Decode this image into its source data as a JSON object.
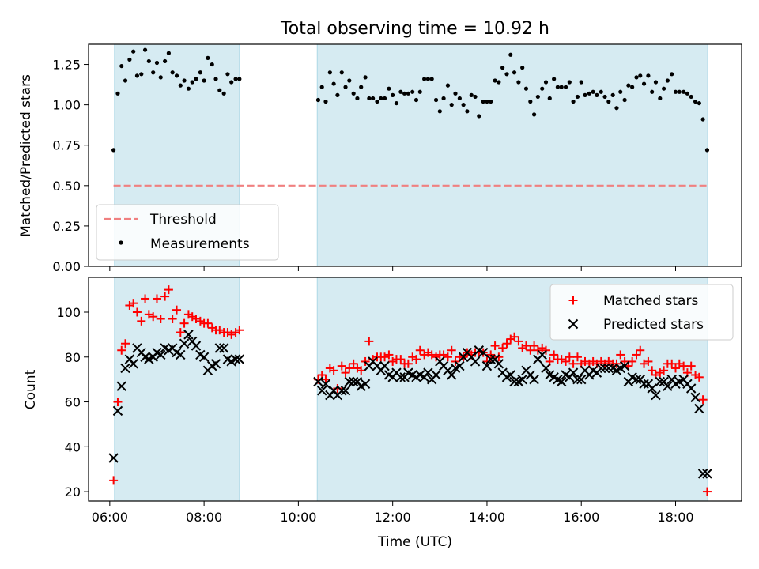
{
  "title": "Total observing time = 10.92 h",
  "chart_data": [
    {
      "type": "scatter",
      "panel": "top",
      "title": "Total observing time = 10.92 h",
      "ylabel": "Matched/Predicted stars",
      "xlabel": "",
      "xlim_hours": [
        5.55,
        19.4
      ],
      "ylim": [
        0.0,
        1.375
      ],
      "yticks": [
        "0.00",
        "0.25",
        "0.50",
        "0.75",
        "1.00",
        "1.25"
      ],
      "xticks_hours": [
        6,
        8,
        10,
        12,
        14,
        16,
        18
      ],
      "shaded_time_ranges": [
        [
          6.1,
          8.75
        ],
        [
          10.4,
          18.68
        ]
      ],
      "threshold": 0.5,
      "legend_position": "lower-left",
      "legend": [
        {
          "label": "Threshold",
          "kind": "dashed-line",
          "color": "#f08080"
        },
        {
          "label": "Measurements",
          "kind": "dot",
          "color": "#000000"
        }
      ],
      "series": [
        {
          "name": "Measurements",
          "x": [
            6.08,
            6.17,
            6.25,
            6.33,
            6.42,
            6.5,
            6.58,
            6.67,
            6.75,
            6.83,
            6.92,
            7.0,
            7.08,
            7.17,
            7.25,
            7.33,
            7.42,
            7.5,
            7.58,
            7.67,
            7.75,
            7.83,
            7.92,
            8.0,
            8.08,
            8.17,
            8.25,
            8.33,
            8.42,
            8.5,
            8.58,
            8.67,
            8.75,
            10.42,
            10.5,
            10.58,
            10.67,
            10.75,
            10.83,
            10.92,
            11.0,
            11.08,
            11.17,
            11.25,
            11.33,
            11.42,
            11.5,
            11.58,
            11.67,
            11.75,
            11.83,
            11.92,
            12.0,
            12.08,
            12.17,
            12.25,
            12.33,
            12.42,
            12.5,
            12.58,
            12.67,
            12.75,
            12.83,
            12.92,
            13.0,
            13.08,
            13.17,
            13.25,
            13.33,
            13.42,
            13.5,
            13.58,
            13.67,
            13.75,
            13.83,
            13.92,
            14.0,
            14.08,
            14.17,
            14.25,
            14.33,
            14.42,
            14.5,
            14.58,
            14.67,
            14.75,
            14.83,
            14.92,
            15.0,
            15.08,
            15.17,
            15.25,
            15.33,
            15.42,
            15.5,
            15.58,
            15.67,
            15.75,
            15.83,
            15.92,
            16.0,
            16.08,
            16.17,
            16.25,
            16.33,
            16.42,
            16.5,
            16.58,
            16.67,
            16.75,
            16.83,
            16.92,
            17.0,
            17.08,
            17.17,
            17.25,
            17.33,
            17.42,
            17.5,
            17.58,
            17.67,
            17.75,
            17.83,
            17.92,
            18.0,
            18.08,
            18.17,
            18.25,
            18.33,
            18.42,
            18.5,
            18.58,
            18.67
          ],
          "values": [
            0.72,
            1.07,
            1.24,
            1.15,
            1.28,
            1.33,
            1.18,
            1.19,
            1.34,
            1.27,
            1.2,
            1.26,
            1.17,
            1.27,
            1.32,
            1.2,
            1.18,
            1.12,
            1.15,
            1.1,
            1.14,
            1.16,
            1.2,
            1.15,
            1.29,
            1.25,
            1.16,
            1.09,
            1.07,
            1.19,
            1.14,
            1.16,
            1.16,
            1.03,
            1.11,
            1.02,
            1.2,
            1.13,
            1.06,
            1.2,
            1.11,
            1.15,
            1.07,
            1.04,
            1.11,
            1.17,
            1.04,
            1.04,
            1.02,
            1.04,
            1.04,
            1.1,
            1.06,
            1.01,
            1.08,
            1.07,
            1.07,
            1.08,
            1.03,
            1.08,
            1.16,
            1.16,
            1.16,
            1.03,
            0.96,
            1.04,
            1.12,
            1.0,
            1.07,
            1.04,
            1.0,
            0.96,
            1.06,
            1.05,
            0.93,
            1.02,
            1.02,
            1.02,
            1.15,
            1.14,
            1.23,
            1.19,
            1.31,
            1.2,
            1.14,
            1.23,
            1.1,
            1.02,
            0.94,
            1.05,
            1.1,
            1.14,
            1.04,
            1.16,
            1.11,
            1.11,
            1.11,
            1.14,
            1.02,
            1.05,
            1.14,
            1.06,
            1.07,
            1.08,
            1.06,
            1.08,
            1.05,
            1.02,
            1.06,
            0.98,
            1.08,
            1.03,
            1.12,
            1.11,
            1.17,
            1.18,
            1.13,
            1.18,
            1.08,
            1.14,
            1.04,
            1.1,
            1.15,
            1.19,
            1.08,
            1.08,
            1.08,
            1.07,
            1.05,
            1.02,
            1.01,
            0.91,
            0.72
          ]
        }
      ]
    },
    {
      "type": "scatter",
      "panel": "bottom",
      "ylabel": "Count",
      "xlabel": "Time (UTC)",
      "xlim_hours": [
        5.55,
        19.4
      ],
      "ylim": [
        15.8,
        115.5
      ],
      "yticks": [
        "20",
        "40",
        "60",
        "80",
        "100"
      ],
      "xticks_hours": [
        6,
        8,
        10,
        12,
        14,
        16,
        18
      ],
      "xtick_labels": [
        "06:00",
        "08:00",
        "10:00",
        "12:00",
        "14:00",
        "16:00",
        "18:00"
      ],
      "shaded_time_ranges": [
        [
          6.1,
          8.75
        ],
        [
          10.4,
          18.68
        ]
      ],
      "legend_position": "upper-right",
      "legend": [
        {
          "label": "Matched stars",
          "kind": "plus",
          "color": "#ff0000"
        },
        {
          "label": "Predicted stars",
          "kind": "cross",
          "color": "#000000"
        }
      ],
      "series": [
        {
          "name": "Matched stars",
          "x": [
            6.08,
            6.17,
            6.25,
            6.33,
            6.42,
            6.5,
            6.58,
            6.67,
            6.75,
            6.83,
            6.92,
            7.0,
            7.08,
            7.17,
            7.25,
            7.33,
            7.42,
            7.5,
            7.58,
            7.67,
            7.75,
            7.83,
            7.92,
            8.0,
            8.08,
            8.17,
            8.25,
            8.33,
            8.42,
            8.5,
            8.58,
            8.67,
            8.75,
            10.42,
            10.5,
            10.58,
            10.67,
            10.75,
            10.83,
            10.92,
            11.0,
            11.08,
            11.17,
            11.25,
            11.33,
            11.42,
            11.5,
            11.58,
            11.67,
            11.75,
            11.83,
            11.92,
            12.0,
            12.08,
            12.17,
            12.25,
            12.33,
            12.42,
            12.5,
            12.58,
            12.67,
            12.75,
            12.83,
            12.92,
            13.0,
            13.08,
            13.17,
            13.25,
            13.33,
            13.42,
            13.5,
            13.58,
            13.67,
            13.75,
            13.83,
            13.92,
            14.0,
            14.08,
            14.17,
            14.25,
            14.33,
            14.42,
            14.5,
            14.58,
            14.67,
            14.75,
            14.83,
            14.92,
            15.0,
            15.08,
            15.17,
            15.25,
            15.33,
            15.42,
            15.5,
            15.58,
            15.67,
            15.75,
            15.83,
            15.92,
            16.0,
            16.08,
            16.17,
            16.25,
            16.33,
            16.42,
            16.5,
            16.58,
            16.67,
            16.75,
            16.83,
            16.92,
            17.0,
            17.08,
            17.17,
            17.25,
            17.33,
            17.42,
            17.5,
            17.58,
            17.67,
            17.75,
            17.83,
            17.92,
            18.0,
            18.08,
            18.17,
            18.25,
            18.33,
            18.42,
            18.5,
            18.58,
            18.67
          ],
          "values": [
            25,
            60,
            83,
            86,
            103,
            104,
            100,
            96,
            106,
            99,
            98,
            106,
            97,
            107,
            110,
            97,
            101,
            91,
            95,
            99,
            98,
            97,
            96,
            95,
            95,
            93,
            92,
            92,
            91,
            91,
            90,
            91,
            92,
            70,
            72,
            70,
            75,
            74,
            66,
            76,
            73,
            75,
            77,
            75,
            74,
            78,
            87,
            79,
            80,
            80,
            80,
            81,
            78,
            79,
            79,
            77,
            77,
            80,
            79,
            83,
            81,
            82,
            81,
            80,
            81,
            81,
            80,
            83,
            78,
            80,
            80,
            82,
            81,
            82,
            82,
            82,
            78,
            81,
            85,
            80,
            84,
            86,
            88,
            89,
            87,
            84,
            85,
            83,
            85,
            83,
            84,
            83,
            78,
            81,
            79,
            79,
            78,
            80,
            77,
            80,
            77,
            78,
            77,
            78,
            77,
            78,
            77,
            78,
            77,
            77,
            81,
            78,
            76,
            78,
            81,
            83,
            77,
            78,
            74,
            72,
            73,
            74,
            77,
            77,
            75,
            77,
            76,
            73,
            76,
            72,
            71,
            61,
            20
          ]
        },
        {
          "name": "Predicted stars",
          "x": [
            6.08,
            6.17,
            6.25,
            6.33,
            6.42,
            6.5,
            6.58,
            6.67,
            6.75,
            6.83,
            6.92,
            7.0,
            7.08,
            7.17,
            7.25,
            7.33,
            7.42,
            7.5,
            7.58,
            7.67,
            7.75,
            7.83,
            7.92,
            8.0,
            8.08,
            8.17,
            8.25,
            8.33,
            8.42,
            8.5,
            8.58,
            8.67,
            8.75,
            10.42,
            10.5,
            10.58,
            10.67,
            10.75,
            10.83,
            10.92,
            11.0,
            11.08,
            11.17,
            11.25,
            11.33,
            11.42,
            11.5,
            11.58,
            11.67,
            11.75,
            11.83,
            11.92,
            12.0,
            12.08,
            12.17,
            12.25,
            12.33,
            12.42,
            12.5,
            12.58,
            12.67,
            12.75,
            12.83,
            12.92,
            13.0,
            13.08,
            13.17,
            13.25,
            13.33,
            13.42,
            13.5,
            13.58,
            13.67,
            13.75,
            13.83,
            13.92,
            14.0,
            14.08,
            14.17,
            14.25,
            14.33,
            14.42,
            14.5,
            14.58,
            14.67,
            14.75,
            14.83,
            14.92,
            15.0,
            15.08,
            15.17,
            15.25,
            15.33,
            15.42,
            15.5,
            15.58,
            15.67,
            15.75,
            15.83,
            15.92,
            16.0,
            16.08,
            16.17,
            16.25,
            16.33,
            16.42,
            16.5,
            16.58,
            16.67,
            16.75,
            16.83,
            16.92,
            17.0,
            17.08,
            17.17,
            17.25,
            17.33,
            17.42,
            17.5,
            17.58,
            17.67,
            17.75,
            17.83,
            17.92,
            18.0,
            18.08,
            18.17,
            18.25,
            18.33,
            18.42,
            18.5,
            18.58,
            18.67
          ],
          "values": [
            35,
            56,
            67,
            75,
            79,
            77,
            84,
            82,
            80,
            79,
            80,
            82,
            81,
            84,
            83,
            84,
            82,
            81,
            86,
            90,
            87,
            85,
            81,
            80,
            74,
            76,
            77,
            84,
            84,
            79,
            78,
            79,
            79,
            69,
            65,
            68,
            63,
            65,
            63,
            65,
            65,
            69,
            69,
            69,
            67,
            68,
            76,
            78,
            76,
            74,
            76,
            72,
            71,
            73,
            71,
            71,
            73,
            72,
            71,
            72,
            71,
            73,
            70,
            72,
            78,
            76,
            74,
            72,
            75,
            76,
            80,
            82,
            80,
            78,
            83,
            82,
            76,
            79,
            79,
            77,
            73,
            71,
            72,
            69,
            69,
            70,
            74,
            72,
            70,
            79,
            81,
            75,
            72,
            71,
            70,
            69,
            72,
            71,
            73,
            70,
            70,
            74,
            72,
            74,
            73,
            75,
            75,
            75,
            75,
            74,
            75,
            76,
            69,
            71,
            70,
            70,
            68,
            68,
            66,
            63,
            69,
            69,
            67,
            70,
            68,
            69,
            70,
            68,
            66,
            62,
            57,
            28,
            28
          ]
        }
      ]
    }
  ]
}
